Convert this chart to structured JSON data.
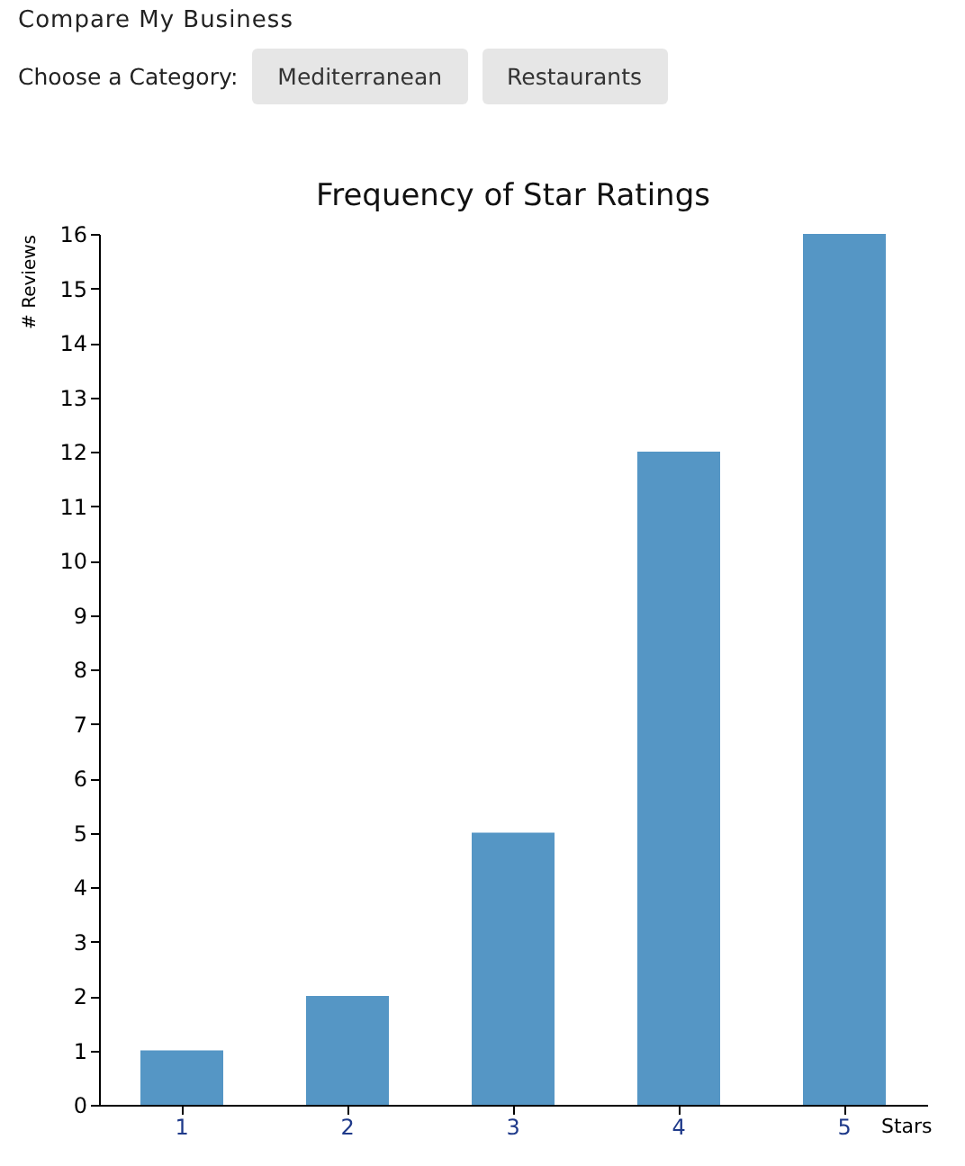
{
  "chart_data": {
    "type": "bar",
    "title": "Frequency of Star Ratings",
    "xlabel": "Stars",
    "ylabel": "# Reviews",
    "annotations": [
      "Compare My Business",
      "Choose a Category:",
      "Mediterranean",
      "Restaurants"
    ],
    "categories": [
      "1",
      "2",
      "3",
      "4",
      "5"
    ],
    "values": [
      1,
      2,
      5,
      12,
      16
    ],
    "color": "#5596c5",
    "ylim": [
      0,
      16
    ],
    "yticks": [
      0,
      1,
      2,
      3,
      4,
      5,
      6,
      7,
      8,
      9,
      10,
      11,
      12,
      13,
      14,
      15,
      16
    ]
  }
}
